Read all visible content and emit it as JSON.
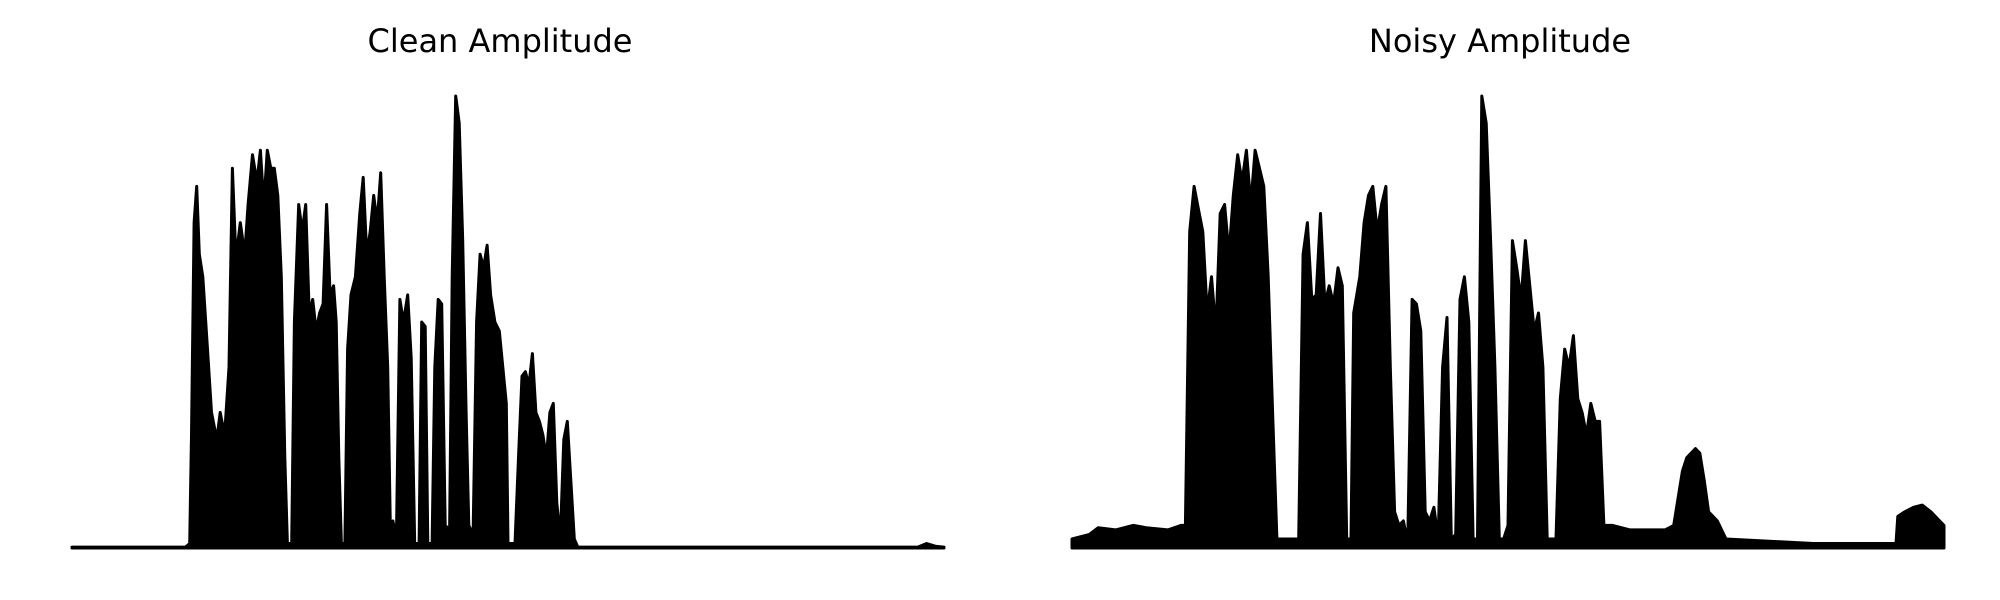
{
  "chart_data": [
    {
      "type": "area",
      "title": "Clean Amplitude",
      "xlabel": "",
      "ylabel": "",
      "grid": false,
      "axes_visible": false,
      "color": "#000000",
      "ylim": [
        0,
        1
      ],
      "x_range": [
        0,
        1
      ],
      "envelope": [
        [
          0.0,
          0.002
        ],
        [
          0.13,
          0.002
        ],
        [
          0.135,
          0.01
        ],
        [
          0.137,
          0.25
        ],
        [
          0.14,
          0.72
        ],
        [
          0.143,
          0.8
        ],
        [
          0.146,
          0.65
        ],
        [
          0.15,
          0.6
        ],
        [
          0.155,
          0.45
        ],
        [
          0.16,
          0.3
        ],
        [
          0.166,
          0.24
        ],
        [
          0.17,
          0.3
        ],
        [
          0.175,
          0.25
        ],
        [
          0.18,
          0.4
        ],
        [
          0.184,
          0.84
        ],
        [
          0.188,
          0.64
        ],
        [
          0.193,
          0.72
        ],
        [
          0.198,
          0.65
        ],
        [
          0.202,
          0.76
        ],
        [
          0.207,
          0.87
        ],
        [
          0.212,
          0.81
        ],
        [
          0.216,
          0.88
        ],
        [
          0.22,
          0.76
        ],
        [
          0.224,
          0.88
        ],
        [
          0.228,
          0.84
        ],
        [
          0.232,
          0.84
        ],
        [
          0.236,
          0.78
        ],
        [
          0.24,
          0.6
        ],
        [
          0.244,
          0.2
        ],
        [
          0.247,
          0.01
        ],
        [
          0.252,
          0.01
        ],
        [
          0.255,
          0.5
        ],
        [
          0.26,
          0.76
        ],
        [
          0.264,
          0.7
        ],
        [
          0.268,
          0.76
        ],
        [
          0.272,
          0.52
        ],
        [
          0.276,
          0.55
        ],
        [
          0.28,
          0.48
        ],
        [
          0.284,
          0.52
        ],
        [
          0.288,
          0.54
        ],
        [
          0.292,
          0.76
        ],
        [
          0.296,
          0.56
        ],
        [
          0.3,
          0.58
        ],
        [
          0.303,
          0.5
        ],
        [
          0.306,
          0.2
        ],
        [
          0.309,
          0.01
        ],
        [
          0.313,
          0.01
        ],
        [
          0.316,
          0.44
        ],
        [
          0.32,
          0.56
        ],
        [
          0.325,
          0.6
        ],
        [
          0.33,
          0.74
        ],
        [
          0.334,
          0.82
        ],
        [
          0.338,
          0.65
        ],
        [
          0.342,
          0.7
        ],
        [
          0.346,
          0.78
        ],
        [
          0.35,
          0.72
        ],
        [
          0.354,
          0.83
        ],
        [
          0.358,
          0.6
        ],
        [
          0.362,
          0.4
        ],
        [
          0.365,
          0.05
        ],
        [
          0.368,
          0.06
        ],
        [
          0.372,
          0.02
        ],
        [
          0.376,
          0.55
        ],
        [
          0.38,
          0.5
        ],
        [
          0.385,
          0.56
        ],
        [
          0.389,
          0.42
        ],
        [
          0.393,
          0.01
        ],
        [
          0.398,
          0.01
        ],
        [
          0.401,
          0.5
        ],
        [
          0.405,
          0.49
        ],
        [
          0.408,
          0.01
        ],
        [
          0.413,
          0.01
        ],
        [
          0.416,
          0.4
        ],
        [
          0.42,
          0.55
        ],
        [
          0.424,
          0.54
        ],
        [
          0.428,
          0.05
        ],
        [
          0.433,
          0.04
        ],
        [
          0.436,
          0.6
        ],
        [
          0.44,
          1.0
        ],
        [
          0.444,
          0.94
        ],
        [
          0.448,
          0.68
        ],
        [
          0.452,
          0.3
        ],
        [
          0.455,
          0.05
        ],
        [
          0.46,
          0.03
        ],
        [
          0.464,
          0.5
        ],
        [
          0.468,
          0.65
        ],
        [
          0.472,
          0.62
        ],
        [
          0.476,
          0.67
        ],
        [
          0.48,
          0.56
        ],
        [
          0.485,
          0.5
        ],
        [
          0.49,
          0.48
        ],
        [
          0.494,
          0.4
        ],
        [
          0.498,
          0.32
        ],
        [
          0.5,
          0.01
        ],
        [
          0.508,
          0.01
        ],
        [
          0.512,
          0.2
        ],
        [
          0.516,
          0.38
        ],
        [
          0.52,
          0.39
        ],
        [
          0.524,
          0.36
        ],
        [
          0.528,
          0.43
        ],
        [
          0.532,
          0.3
        ],
        [
          0.536,
          0.28
        ],
        [
          0.54,
          0.25
        ],
        [
          0.544,
          0.2
        ],
        [
          0.548,
          0.3
        ],
        [
          0.552,
          0.32
        ],
        [
          0.556,
          0.1
        ],
        [
          0.56,
          0.02
        ],
        [
          0.564,
          0.24
        ],
        [
          0.568,
          0.28
        ],
        [
          0.572,
          0.15
        ],
        [
          0.576,
          0.02
        ],
        [
          0.58,
          0.002
        ],
        [
          0.97,
          0.002
        ],
        [
          0.98,
          0.01
        ],
        [
          0.99,
          0.004
        ],
        [
          1.0,
          0.002
        ]
      ]
    },
    {
      "type": "area",
      "title": "Noisy Amplitude",
      "xlabel": "",
      "ylabel": "",
      "grid": false,
      "axes_visible": false,
      "color": "#000000",
      "ylim": [
        0,
        1
      ],
      "x_range": [
        0,
        1
      ],
      "envelope": [
        [
          0.0,
          0.02
        ],
        [
          0.02,
          0.03
        ],
        [
          0.03,
          0.045
        ],
        [
          0.05,
          0.04
        ],
        [
          0.07,
          0.05
        ],
        [
          0.085,
          0.045
        ],
        [
          0.11,
          0.04
        ],
        [
          0.125,
          0.05
        ],
        [
          0.13,
          0.05
        ],
        [
          0.135,
          0.7
        ],
        [
          0.14,
          0.8
        ],
        [
          0.145,
          0.75
        ],
        [
          0.15,
          0.7
        ],
        [
          0.155,
          0.52
        ],
        [
          0.16,
          0.6
        ],
        [
          0.165,
          0.48
        ],
        [
          0.17,
          0.74
        ],
        [
          0.175,
          0.76
        ],
        [
          0.18,
          0.65
        ],
        [
          0.185,
          0.78
        ],
        [
          0.19,
          0.87
        ],
        [
          0.195,
          0.81
        ],
        [
          0.2,
          0.88
        ],
        [
          0.205,
          0.76
        ],
        [
          0.21,
          0.88
        ],
        [
          0.215,
          0.84
        ],
        [
          0.22,
          0.8
        ],
        [
          0.225,
          0.6
        ],
        [
          0.23,
          0.3
        ],
        [
          0.235,
          0.02
        ],
        [
          0.26,
          0.02
        ],
        [
          0.265,
          0.65
        ],
        [
          0.27,
          0.72
        ],
        [
          0.275,
          0.55
        ],
        [
          0.28,
          0.56
        ],
        [
          0.285,
          0.74
        ],
        [
          0.29,
          0.54
        ],
        [
          0.295,
          0.58
        ],
        [
          0.3,
          0.54
        ],
        [
          0.305,
          0.62
        ],
        [
          0.31,
          0.58
        ],
        [
          0.315,
          0.02
        ],
        [
          0.32,
          0.02
        ],
        [
          0.323,
          0.52
        ],
        [
          0.33,
          0.6
        ],
        [
          0.335,
          0.72
        ],
        [
          0.34,
          0.78
        ],
        [
          0.345,
          0.8
        ],
        [
          0.35,
          0.7
        ],
        [
          0.355,
          0.76
        ],
        [
          0.36,
          0.8
        ],
        [
          0.365,
          0.4
        ],
        [
          0.37,
          0.08
        ],
        [
          0.375,
          0.05
        ],
        [
          0.38,
          0.06
        ],
        [
          0.385,
          0.01
        ],
        [
          0.39,
          0.55
        ],
        [
          0.395,
          0.54
        ],
        [
          0.4,
          0.48
        ],
        [
          0.405,
          0.08
        ],
        [
          0.41,
          0.06
        ],
        [
          0.415,
          0.09
        ],
        [
          0.42,
          0.02
        ],
        [
          0.425,
          0.4
        ],
        [
          0.43,
          0.51
        ],
        [
          0.435,
          0.02
        ],
        [
          0.44,
          0.03
        ],
        [
          0.445,
          0.55
        ],
        [
          0.45,
          0.6
        ],
        [
          0.455,
          0.5
        ],
        [
          0.46,
          0.02
        ],
        [
          0.465,
          0.02
        ],
        [
          0.47,
          1.0
        ],
        [
          0.475,
          0.94
        ],
        [
          0.48,
          0.68
        ],
        [
          0.485,
          0.4
        ],
        [
          0.49,
          0.02
        ],
        [
          0.495,
          0.02
        ],
        [
          0.5,
          0.05
        ],
        [
          0.505,
          0.68
        ],
        [
          0.51,
          0.62
        ],
        [
          0.515,
          0.55
        ],
        [
          0.52,
          0.68
        ],
        [
          0.525,
          0.58
        ],
        [
          0.53,
          0.48
        ],
        [
          0.535,
          0.52
        ],
        [
          0.54,
          0.4
        ],
        [
          0.545,
          0.02
        ],
        [
          0.555,
          0.02
        ],
        [
          0.56,
          0.33
        ],
        [
          0.565,
          0.44
        ],
        [
          0.57,
          0.4
        ],
        [
          0.575,
          0.47
        ],
        [
          0.58,
          0.33
        ],
        [
          0.585,
          0.3
        ],
        [
          0.59,
          0.25
        ],
        [
          0.595,
          0.32
        ],
        [
          0.6,
          0.28
        ],
        [
          0.605,
          0.28
        ],
        [
          0.61,
          0.05
        ],
        [
          0.62,
          0.05
        ],
        [
          0.64,
          0.04
        ],
        [
          0.66,
          0.04
        ],
        [
          0.68,
          0.04
        ],
        [
          0.69,
          0.05
        ],
        [
          0.7,
          0.17
        ],
        [
          0.705,
          0.2
        ],
        [
          0.71,
          0.21
        ],
        [
          0.715,
          0.22
        ],
        [
          0.72,
          0.21
        ],
        [
          0.725,
          0.15
        ],
        [
          0.73,
          0.08
        ],
        [
          0.74,
          0.06
        ],
        [
          0.75,
          0.02
        ],
        [
          0.85,
          0.01
        ],
        [
          0.945,
          0.01
        ],
        [
          0.947,
          0.07
        ],
        [
          0.955,
          0.08
        ],
        [
          0.965,
          0.09
        ],
        [
          0.975,
          0.095
        ],
        [
          0.985,
          0.08
        ],
        [
          0.995,
          0.06
        ],
        [
          1.0,
          0.05
        ]
      ]
    }
  ]
}
